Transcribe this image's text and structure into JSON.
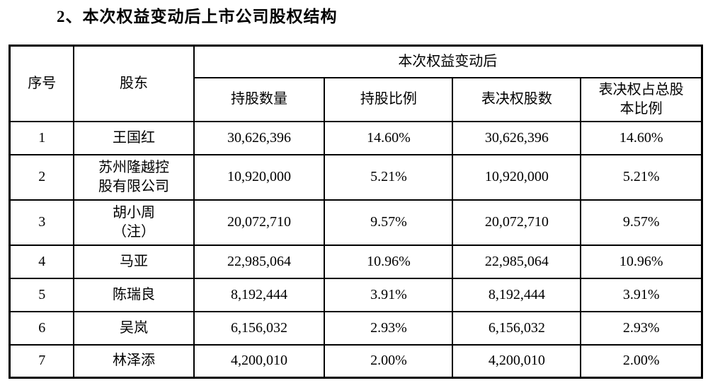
{
  "colors": {
    "text": "#000000",
    "border": "#000000",
    "background": "#ffffff"
  },
  "page": {
    "title": "2、本次权益变动后上市公司股权结构"
  },
  "table": {
    "header": {
      "col_index": "序号",
      "col_shareholder": "股东",
      "group": "本次权益变动后",
      "sub": [
        "持股数量",
        "持股比例",
        "表决权股数",
        "表决权占总股\n本比例"
      ]
    },
    "rows": [
      {
        "no": "1",
        "name": "王国红",
        "shares": "30,626,396",
        "ratio": "14.60%",
        "voting_shares": "30,626,396",
        "voting_ratio": "14.60%"
      },
      {
        "no": "2",
        "name": "苏州隆越控\n股有限公司",
        "shares": "10,920,000",
        "ratio": "5.21%",
        "voting_shares": "10,920,000",
        "voting_ratio": "5.21%"
      },
      {
        "no": "3",
        "name": "胡小周\n（注）",
        "shares": "20,072,710",
        "ratio": "9.57%",
        "voting_shares": "20,072,710",
        "voting_ratio": "9.57%"
      },
      {
        "no": "4",
        "name": "马亚",
        "shares": "22,985,064",
        "ratio": "10.96%",
        "voting_shares": "22,985,064",
        "voting_ratio": "10.96%"
      },
      {
        "no": "5",
        "name": "陈瑞良",
        "shares": "8,192,444",
        "ratio": "3.91%",
        "voting_shares": "8,192,444",
        "voting_ratio": "3.91%"
      },
      {
        "no": "6",
        "name": "吴岚",
        "shares": "6,156,032",
        "ratio": "2.93%",
        "voting_shares": "6,156,032",
        "voting_ratio": "2.93%"
      },
      {
        "no": "7",
        "name": "林泽添",
        "shares": "4,200,010",
        "ratio": "2.00%",
        "voting_shares": "4,200,010",
        "voting_ratio": "2.00%"
      }
    ]
  }
}
